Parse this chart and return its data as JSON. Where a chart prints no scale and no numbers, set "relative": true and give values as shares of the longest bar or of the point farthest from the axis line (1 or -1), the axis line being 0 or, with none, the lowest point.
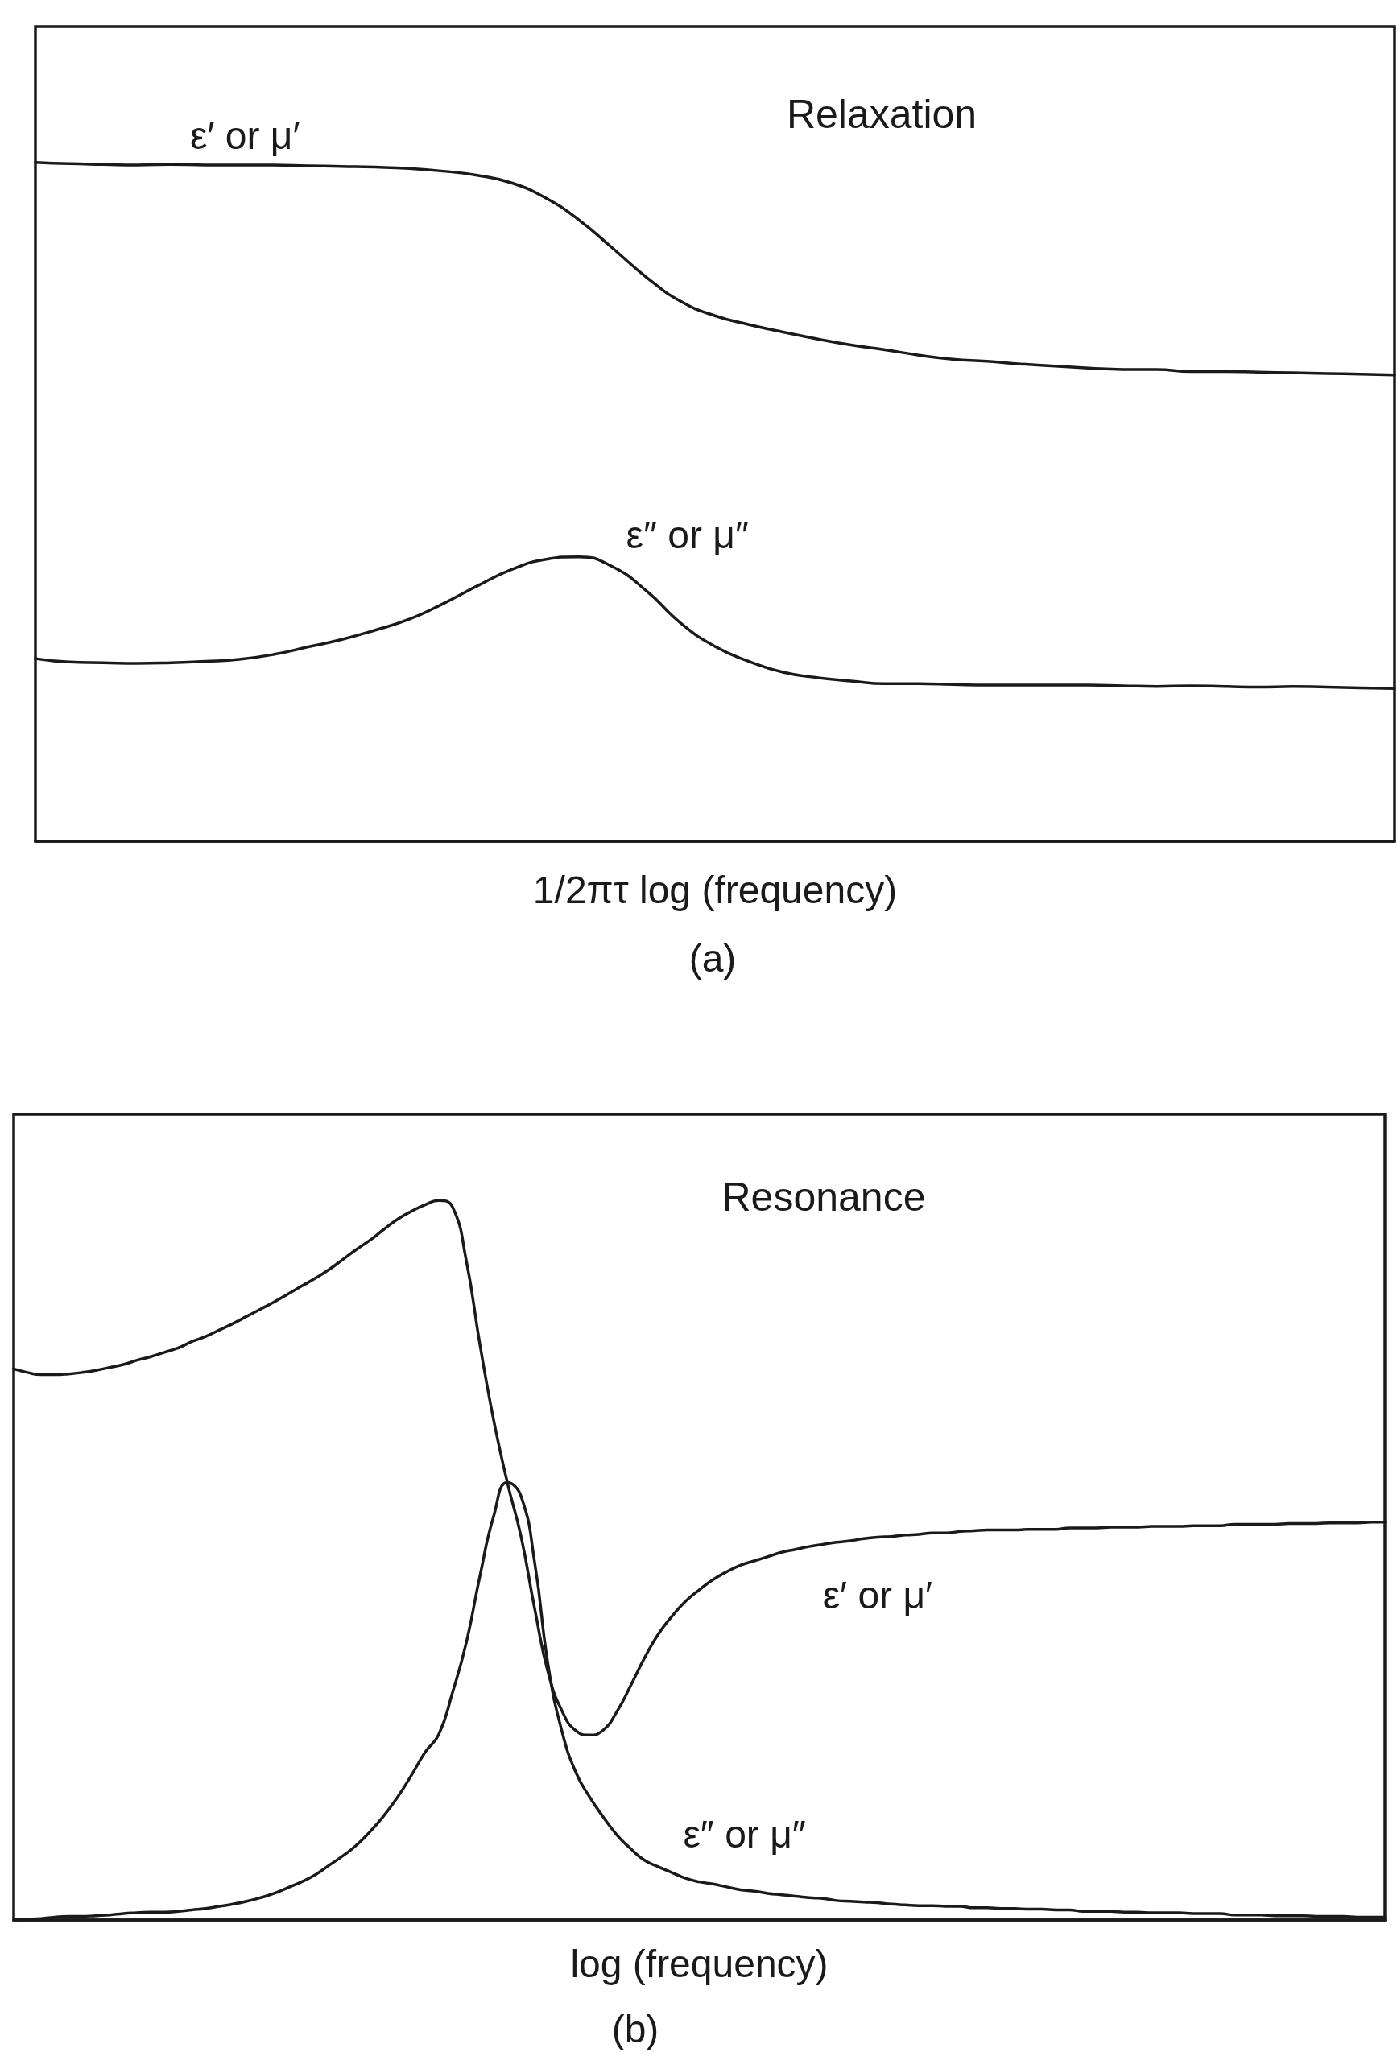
{
  "chart_data": [
    {
      "type": "line",
      "title": "Relaxation",
      "xlabel": "1/2πτ log (frequency)",
      "annotations": [
        "(a)"
      ],
      "relative": true,
      "marker": "none",
      "categories": [
        null,
        null,
        null,
        null,
        null,
        null,
        null,
        null,
        null,
        null,
        null,
        null,
        null,
        null,
        null,
        null,
        null,
        null,
        null,
        null,
        null,
        null,
        null,
        null,
        null,
        null,
        null,
        null,
        null,
        null,
        null,
        null,
        null,
        null,
        null,
        null,
        null,
        null,
        null,
        null,
        null
      ],
      "series": [
        {
          "name": "ε′ or μ′",
          "color": "#1a1a1a",
          "values": [
            1,
            0.998,
            0.997,
            0.996,
            0.997,
            0.996,
            0.996,
            0.996,
            0.995,
            0.994,
            0.993,
            0.991,
            0.987,
            0.981,
            0.97,
            0.948,
            0.915,
            0.873,
            0.83,
            0.795,
            0.774,
            0.761,
            0.75,
            0.74,
            0.731,
            0.724,
            0.716,
            0.71,
            0.707,
            0.703,
            0.7,
            0.697,
            0.695,
            0.695,
            0.692,
            0.692,
            0.691,
            0.69,
            0.689,
            0.688,
            0.687
          ]
        },
        {
          "name": "ε″ or μ″",
          "color": "#1a1a1a",
          "values": [
            0.269,
            0.264,
            0.263,
            0.262,
            0.263,
            0.265,
            0.268,
            0.275,
            0.286,
            0.297,
            0.311,
            0.327,
            0.35,
            0.376,
            0.4,
            0.415,
            0.419,
            0.404,
            0.368,
            0.321,
            0.287,
            0.265,
            0.249,
            0.241,
            0.236,
            0.232,
            0.232,
            0.231,
            0.23,
            0.23,
            0.23,
            0.23,
            0.229,
            0.228,
            0.229,
            0.228,
            0.227,
            0.228,
            0.227,
            0.226,
            0.225
          ]
        }
      ]
    },
    {
      "type": "line",
      "title": "Resonance",
      "xlabel": "log (frequency)",
      "annotations": [
        "(b)"
      ],
      "relative": true,
      "marker": "none",
      "categories": [
        null,
        null,
        null,
        null,
        null,
        null,
        null,
        null,
        null,
        null,
        null,
        null,
        null,
        null,
        null,
        null,
        null,
        null,
        null,
        null,
        null,
        null,
        null,
        null,
        null,
        null,
        null,
        null,
        null,
        null,
        null,
        null,
        null,
        null,
        null,
        null,
        null,
        null,
        null,
        null,
        null,
        null,
        null,
        null,
        null,
        null,
        null,
        null,
        null,
        null,
        null,
        null,
        null,
        null,
        null,
        null,
        null,
        null,
        null,
        null,
        null,
        null,
        null,
        null,
        null,
        null,
        null,
        null,
        null,
        null,
        null,
        null,
        null,
        null,
        null,
        null,
        null,
        null,
        null,
        null,
        null,
        null,
        null,
        null,
        null,
        null,
        null,
        null,
        null,
        null,
        null,
        null,
        null,
        null,
        null,
        null,
        null,
        null,
        null,
        null,
        null
      ],
      "series": [
        {
          "name": "ε′ or μ′",
          "color": "#1a1a1a",
          "values": [
            0.766,
            0.761,
            0.758,
            0.758,
            0.759,
            0.761,
            0.764,
            0.768,
            0.772,
            0.778,
            0.783,
            0.789,
            0.795,
            0.804,
            0.811,
            0.82,
            0.829,
            0.839,
            0.849,
            0.859,
            0.87,
            0.881,
            0.892,
            0.904,
            0.918,
            0.932,
            0.945,
            0.96,
            0.974,
            0.985,
            0.994,
            1,
            0.991,
            0.917,
            0.8,
            0.695,
            0.608,
            0.533,
            0.432,
            0.342,
            0.29,
            0.263,
            0.257,
            0.264,
            0.29,
            0.326,
            0.364,
            0.397,
            0.422,
            0.443,
            0.459,
            0.473,
            0.484,
            0.493,
            0.499,
            0.505,
            0.511,
            0.515,
            0.519,
            0.522,
            0.525,
            0.527,
            0.53,
            0.532,
            0.533,
            0.535,
            0.536,
            0.538,
            0.538,
            0.54,
            0.541,
            0.542,
            0.542,
            0.542,
            0.543,
            0.543,
            0.543,
            0.545,
            0.545,
            0.545,
            0.546,
            0.546,
            0.546,
            0.547,
            0.547,
            0.547,
            0.548,
            0.548,
            0.548,
            0.55,
            0.55,
            0.55,
            0.55,
            0.551,
            0.551,
            0.551,
            0.552,
            0.552,
            0.552,
            0.553,
            0.553
          ]
        },
        {
          "name": "ε″ or μ″",
          "color": "#1a1a1a",
          "values": [
            0,
            0.001,
            0.002,
            0.004,
            0.005,
            0.005,
            0.006,
            0.007,
            0.009,
            0.01,
            0.011,
            0.011,
            0.012,
            0.014,
            0.016,
            0.019,
            0.022,
            0.026,
            0.031,
            0.037,
            0.045,
            0.053,
            0.063,
            0.076,
            0.089,
            0.104,
            0.123,
            0.145,
            0.171,
            0.201,
            0.233,
            0.258,
            0.316,
            0.385,
            0.478,
            0.561,
            0.608,
            0.589,
            0.496,
            0.351,
            0.261,
            0.205,
            0.171,
            0.143,
            0.118,
            0.099,
            0.083,
            0.074,
            0.066,
            0.058,
            0.053,
            0.05,
            0.046,
            0.042,
            0.04,
            0.037,
            0.035,
            0.033,
            0.031,
            0.03,
            0.027,
            0.026,
            0.025,
            0.024,
            0.022,
            0.021,
            0.02,
            0.02,
            0.019,
            0.019,
            0.017,
            0.017,
            0.016,
            0.016,
            0.015,
            0.015,
            0.014,
            0.014,
            0.012,
            0.012,
            0.012,
            0.011,
            0.011,
            0.01,
            0.01,
            0.01,
            0.009,
            0.009,
            0.009,
            0.007,
            0.007,
            0.007,
            0.006,
            0.006,
            0.006,
            0.005,
            0.005,
            0.005,
            0.004,
            0.004,
            0.004
          ]
        }
      ]
    }
  ]
}
